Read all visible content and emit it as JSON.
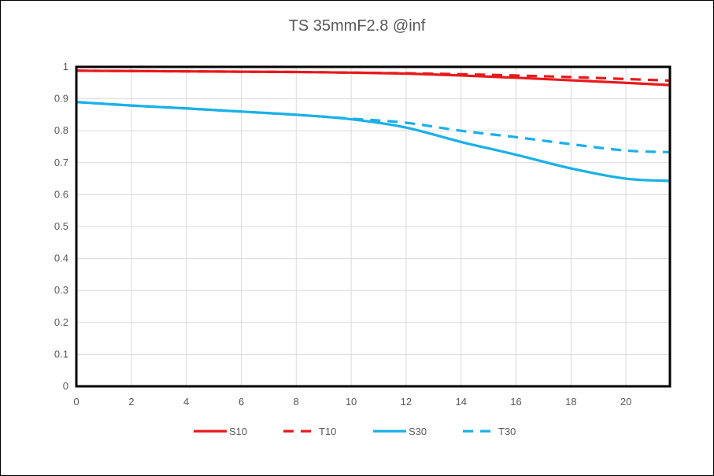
{
  "chart_data": {
    "type": "line",
    "title": "TS 35mmF2.8 @inf",
    "xlabel": "",
    "ylabel": "",
    "xlim": [
      0,
      21.6
    ],
    "ylim": [
      0,
      1
    ],
    "x_ticks": [
      "0",
      "2",
      "4",
      "6",
      "8",
      "10",
      "12",
      "14",
      "16",
      "18",
      "20"
    ],
    "y_ticks": [
      "0",
      "0.1",
      "0.2",
      "0.3",
      "0.4",
      "0.5",
      "0.6",
      "0.7",
      "0.8",
      "0.9",
      "1"
    ],
    "grid": true,
    "legend_position": "bottom",
    "series": [
      {
        "name": "S10",
        "color": "#e8191c",
        "dash": false,
        "x": [
          0,
          2,
          4,
          6,
          8,
          10,
          12,
          14,
          16,
          18,
          20,
          21.6
        ],
        "y": [
          0.988,
          0.987,
          0.986,
          0.985,
          0.984,
          0.982,
          0.979,
          0.973,
          0.966,
          0.958,
          0.95,
          0.943
        ]
      },
      {
        "name": "T10",
        "color": "#e8191c",
        "dash": true,
        "x": [
          0,
          2,
          4,
          6,
          8,
          10,
          12,
          14,
          16,
          18,
          20,
          21.6
        ],
        "y": [
          0.988,
          0.987,
          0.986,
          0.985,
          0.984,
          0.982,
          0.98,
          0.977,
          0.973,
          0.968,
          0.962,
          0.957
        ]
      },
      {
        "name": "S30",
        "color": "#1ab0e8",
        "dash": false,
        "x": [
          0,
          2,
          4,
          6,
          8,
          10,
          12,
          14,
          16,
          18,
          20,
          21.6
        ],
        "y": [
          0.89,
          0.879,
          0.87,
          0.86,
          0.85,
          0.836,
          0.81,
          0.765,
          0.725,
          0.682,
          0.65,
          0.643
        ]
      },
      {
        "name": "T30",
        "color": "#1ab0e8",
        "dash": true,
        "x": [
          0,
          2,
          4,
          6,
          8,
          10,
          12,
          14,
          16,
          18,
          20,
          21.6
        ],
        "y": [
          0.89,
          0.879,
          0.87,
          0.86,
          0.85,
          0.838,
          0.825,
          0.8,
          0.78,
          0.758,
          0.738,
          0.733
        ]
      }
    ]
  }
}
